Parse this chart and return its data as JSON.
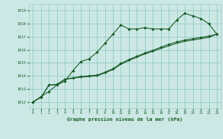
{
  "background_color": "#cce8e4",
  "grid_color": "#99ccc8",
  "line_color": "#1a5c2a",
  "marker_color": "#1a5c2a",
  "title": "Graphe pression niveau de la mer (hPa)",
  "title_color": "#1a5c2a",
  "xlim": [
    -0.5,
    23.5
  ],
  "ylim": [
    1011.5,
    1019.5
  ],
  "yticks": [
    1012,
    1013,
    1014,
    1015,
    1016,
    1017,
    1018,
    1019
  ],
  "xticks": [
    0,
    1,
    2,
    3,
    4,
    5,
    6,
    7,
    8,
    9,
    10,
    11,
    12,
    13,
    14,
    15,
    16,
    17,
    18,
    19,
    20,
    21,
    22,
    23
  ],
  "series1_y": [
    1012.0,
    1012.4,
    1012.8,
    1013.3,
    1013.6,
    1014.4,
    1015.1,
    1015.3,
    1015.8,
    1016.5,
    1017.2,
    1017.9,
    1017.6,
    1017.6,
    1017.7,
    1017.6,
    1017.6,
    1017.6,
    1018.3,
    1018.8,
    1018.6,
    1018.4,
    1018.0,
    1017.2
  ],
  "series2_y": [
    1012.0,
    1012.35,
    1013.3,
    1013.35,
    1013.75,
    1013.85,
    1013.95,
    1014.0,
    1014.05,
    1014.28,
    1014.55,
    1014.95,
    1015.25,
    1015.5,
    1015.75,
    1015.95,
    1016.2,
    1016.42,
    1016.6,
    1016.75,
    1016.85,
    1016.95,
    1017.05,
    1017.2
  ],
  "series3_y": [
    1012.0,
    1012.35,
    1013.28,
    1013.32,
    1013.72,
    1013.82,
    1013.9,
    1013.95,
    1014.0,
    1014.22,
    1014.48,
    1014.88,
    1015.18,
    1015.43,
    1015.68,
    1015.88,
    1016.1,
    1016.3,
    1016.5,
    1016.65,
    1016.75,
    1016.85,
    1016.95,
    1017.2
  ]
}
